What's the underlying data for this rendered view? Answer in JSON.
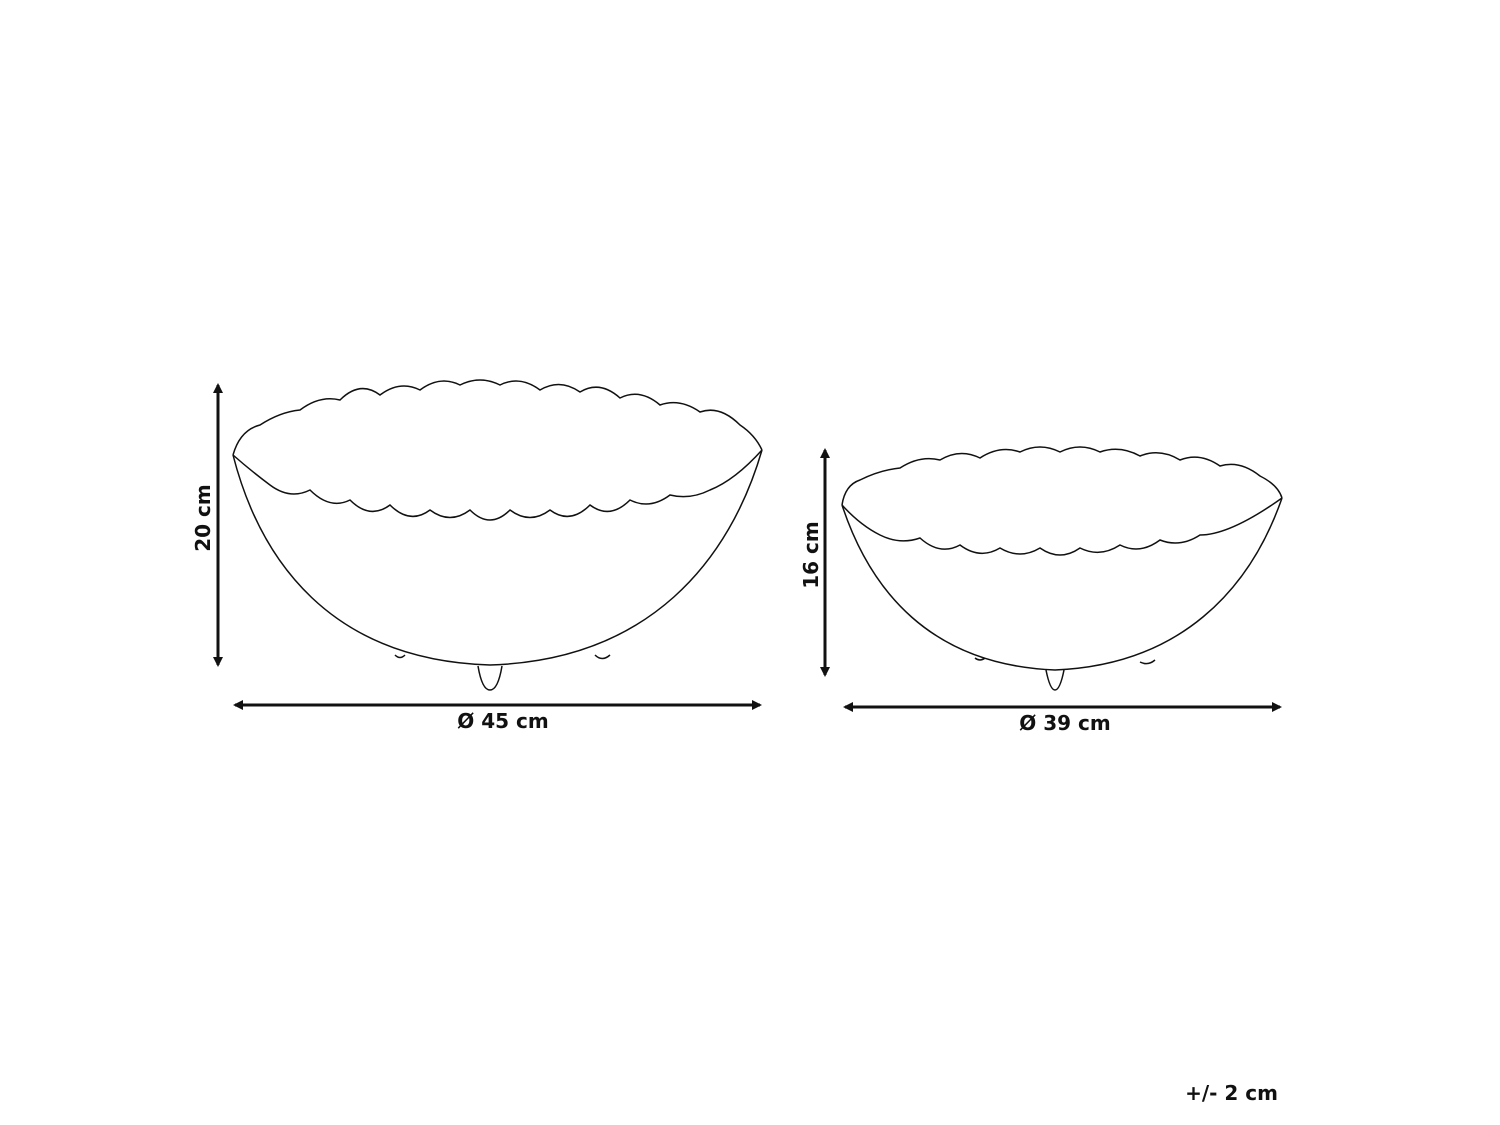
{
  "items": [
    {
      "height": "20 cm",
      "diameter": "Ø 45 cm"
    },
    {
      "height": "16 cm",
      "diameter": "Ø 39 cm"
    }
  ],
  "tolerance": "+/- 2 cm"
}
